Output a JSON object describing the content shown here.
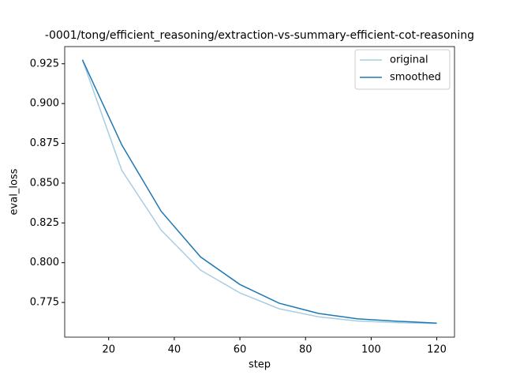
{
  "chart_data": {
    "type": "line",
    "title": "-0001/tong/efficient_reasoning/extraction-vs-summary-efficient-cot-reasoning",
    "x_label": "step",
    "y_label": "eval_loss",
    "x": [
      12,
      24,
      36,
      48,
      60,
      72,
      84,
      96,
      108,
      120
    ],
    "series": [
      {
        "name": "original",
        "color": "#a6cee3",
        "values": [
          0.9275,
          0.858,
          0.8204,
          0.7953,
          0.781,
          0.771,
          0.766,
          0.7633,
          0.7623,
          0.7618
        ]
      },
      {
        "name": "smoothed",
        "color": "#1f78b4",
        "values": [
          0.9275,
          0.874,
          0.8323,
          0.8036,
          0.7863,
          0.7745,
          0.7681,
          0.7647,
          0.7632,
          0.762
        ]
      }
    ],
    "xlim": [
      6.6,
      125.4
    ],
    "xticks": [
      20,
      40,
      60,
      80,
      100,
      120
    ],
    "ylim": [
      0.7532,
      0.9358
    ],
    "yticks": [
      0.775,
      {
        "value": 0.8,
        "label": "0.800"
      },
      0.825,
      {
        "value": 0.85,
        "label": "0.850"
      },
      0.875,
      {
        "value": 0.9,
        "label": "0.900"
      },
      0.925
    ],
    "legend": "upper right"
  }
}
